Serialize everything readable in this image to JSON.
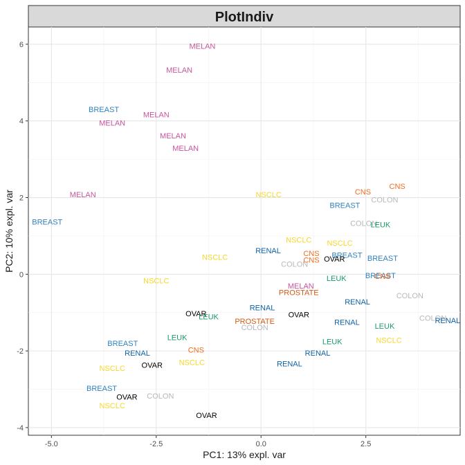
{
  "chart_data": {
    "type": "scatter",
    "title": "PlotIndiv",
    "xlabel": "PC1: 13% expl. var",
    "ylabel": "PC2: 10% expl. var",
    "xlim": [
      -5.55,
      4.75
    ],
    "ylim": [
      -4.2,
      6.45
    ],
    "xticks": [
      -5.0,
      -2.5,
      0.0,
      2.5
    ],
    "xtick_labels": [
      "-5.0",
      "-2.5",
      "0.0",
      "2.5"
    ],
    "yticks": [
      -4,
      -2,
      0,
      2,
      4,
      6
    ],
    "ytick_labels": [
      "-4",
      "-2",
      "0",
      "2",
      "4",
      "6"
    ],
    "grid": true,
    "colors": {
      "BREAST": "#3182bd",
      "MELAN": "#c7559e",
      "NSCLC": "#f5d728",
      "RENAL": "#0f62a6",
      "CNS": "#f46c1b",
      "COLON": "#b8b8b8",
      "LEUK": "#1c9867",
      "OVAR": "#000000",
      "PROSTATE": "#d45a13"
    },
    "points": [
      {
        "label": "MELAN",
        "x": -1.4,
        "y": 5.95
      },
      {
        "label": "MELAN",
        "x": -1.95,
        "y": 5.33
      },
      {
        "label": "BREAST",
        "x": -3.75,
        "y": 4.3
      },
      {
        "label": "MELAN",
        "x": -2.5,
        "y": 4.17
      },
      {
        "label": "MELAN",
        "x": -3.55,
        "y": 3.95
      },
      {
        "label": "MELAN",
        "x": -2.1,
        "y": 3.62
      },
      {
        "label": "MELAN",
        "x": -1.8,
        "y": 3.29
      },
      {
        "label": "MELAN",
        "x": -4.25,
        "y": 2.08
      },
      {
        "label": "BREAST",
        "x": -5.1,
        "y": 1.37
      },
      {
        "label": "NSCLC",
        "x": 0.18,
        "y": 2.08
      },
      {
        "label": "CNS",
        "x": 2.43,
        "y": 2.15
      },
      {
        "label": "CNS",
        "x": 3.25,
        "y": 2.3
      },
      {
        "label": "BREAST",
        "x": 2.0,
        "y": 1.8
      },
      {
        "label": "COLON",
        "x": 2.95,
        "y": 1.95
      },
      {
        "label": "COLON",
        "x": 2.45,
        "y": 1.33
      },
      {
        "label": "LEUK",
        "x": 2.85,
        "y": 1.3
      },
      {
        "label": "NSCLC",
        "x": 0.9,
        "y": 0.9
      },
      {
        "label": "NSCLC",
        "x": 1.88,
        "y": 0.82
      },
      {
        "label": "RENAL",
        "x": 0.17,
        "y": 0.62
      },
      {
        "label": "CNS",
        "x": 1.2,
        "y": 0.55
      },
      {
        "label": "BREAST",
        "x": 2.05,
        "y": 0.5
      },
      {
        "label": "NSCLC",
        "x": -1.1,
        "y": 0.45
      },
      {
        "label": "CNS",
        "x": 1.2,
        "y": 0.38
      },
      {
        "label": "OVAR",
        "x": 1.75,
        "y": 0.4
      },
      {
        "label": "BREAST",
        "x": 2.9,
        "y": 0.42
      },
      {
        "label": "COLON",
        "x": 0.8,
        "y": 0.27
      },
      {
        "label": "NSCLC",
        "x": -2.5,
        "y": -0.17
      },
      {
        "label": "LEUK",
        "x": 1.8,
        "y": -0.1
      },
      {
        "label": "BREAST",
        "x": 2.85,
        "y": -0.03
      },
      {
        "label": "CNS",
        "x": 2.9,
        "y": -0.05
      },
      {
        "label": "MELAN",
        "x": 0.95,
        "y": -0.3
      },
      {
        "label": "PROSTATE",
        "x": 0.9,
        "y": -0.47
      },
      {
        "label": "COLON",
        "x": 3.55,
        "y": -0.55
      },
      {
        "label": "RENAL",
        "x": 2.3,
        "y": -0.72
      },
      {
        "label": "RENAL",
        "x": 0.03,
        "y": -0.87
      },
      {
        "label": "OVAR",
        "x": -1.55,
        "y": -1.02
      },
      {
        "label": "OVAR",
        "x": 0.9,
        "y": -1.05
      },
      {
        "label": "LEUK",
        "x": -1.25,
        "y": -1.1
      },
      {
        "label": "PROSTATE",
        "x": -0.15,
        "y": -1.22
      },
      {
        "label": "RENAL",
        "x": 2.05,
        "y": -1.25
      },
      {
        "label": "COLON",
        "x": -0.15,
        "y": -1.38
      },
      {
        "label": "COLON",
        "x": 4.1,
        "y": -1.14
      },
      {
        "label": "RENAL",
        "x": 4.45,
        "y": -1.2
      },
      {
        "label": "LEUK",
        "x": 2.95,
        "y": -1.35
      },
      {
        "label": "LEUK",
        "x": -2.0,
        "y": -1.65
      },
      {
        "label": "LEUK",
        "x": 1.7,
        "y": -1.75
      },
      {
        "label": "NSCLC",
        "x": 3.05,
        "y": -1.72
      },
      {
        "label": "BREAST",
        "x": -3.3,
        "y": -1.8
      },
      {
        "label": "CNS",
        "x": -1.55,
        "y": -1.97
      },
      {
        "label": "RENAL",
        "x": -2.95,
        "y": -2.05
      },
      {
        "label": "RENAL",
        "x": 1.35,
        "y": -2.05
      },
      {
        "label": "NSCLC",
        "x": -1.65,
        "y": -2.3
      },
      {
        "label": "OVAR",
        "x": -2.6,
        "y": -2.37
      },
      {
        "label": "RENAL",
        "x": 0.68,
        "y": -2.33
      },
      {
        "label": "NSCLC",
        "x": -3.55,
        "y": -2.45
      },
      {
        "label": "BREAST",
        "x": -3.8,
        "y": -2.97
      },
      {
        "label": "OVAR",
        "x": -3.2,
        "y": -3.2
      },
      {
        "label": "COLON",
        "x": -2.4,
        "y": -3.17
      },
      {
        "label": "NSCLC",
        "x": -3.55,
        "y": -3.42
      },
      {
        "label": "OVAR",
        "x": -1.3,
        "y": -3.68
      }
    ]
  }
}
